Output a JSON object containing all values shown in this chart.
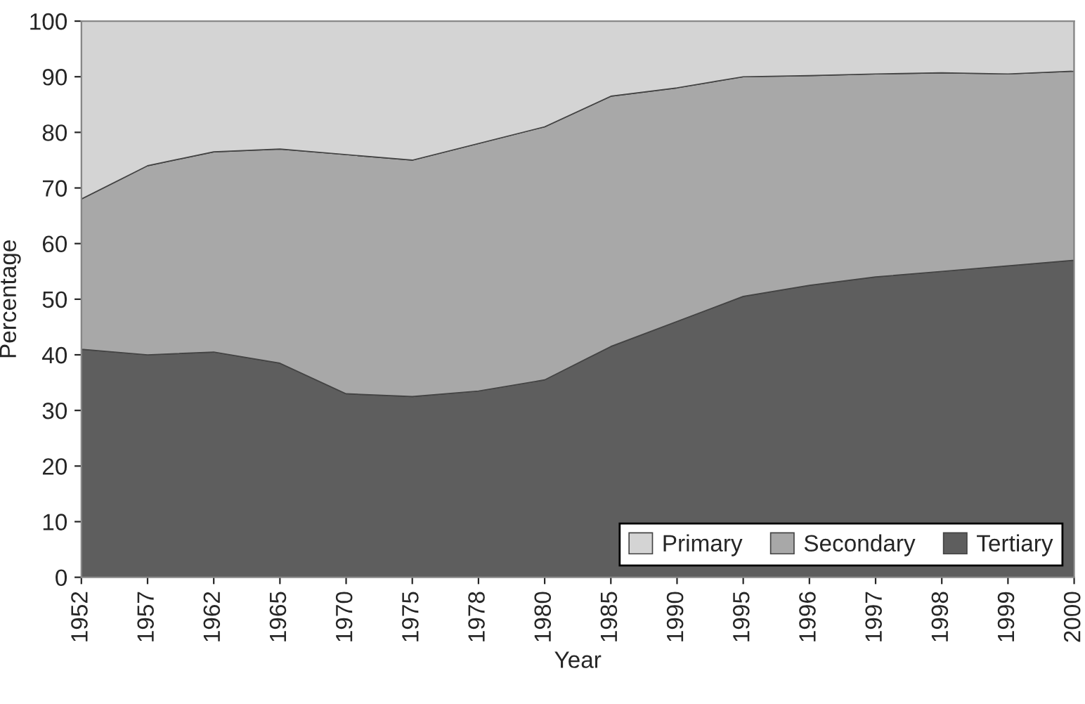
{
  "chart_data": {
    "type": "area",
    "stacked": true,
    "xlabel": "Year",
    "ylabel": "Percentage",
    "categories": [
      "1952",
      "1957",
      "1962",
      "1965",
      "1970",
      "1975",
      "1978",
      "1980",
      "1985",
      "1990",
      "1995",
      "1996",
      "1997",
      "1998",
      "1999",
      "2000"
    ],
    "series": [
      {
        "name": "Tertiary",
        "color": "#5e5e5e",
        "values": [
          41,
          40,
          40.5,
          38.5,
          33,
          32.5,
          33.5,
          35.5,
          41.5,
          46,
          50.5,
          52.5,
          54,
          55,
          56,
          57
        ]
      },
      {
        "name": "Secondary",
        "color": "#a8a8a8",
        "values": [
          27,
          34,
          36,
          38.5,
          43,
          42.5,
          44.5,
          45.5,
          45,
          42,
          39.5,
          37.7,
          36.5,
          35.7,
          34.5,
          34
        ]
      },
      {
        "name": "Primary",
        "color": "#d4d4d4",
        "values": [
          32,
          26,
          23.5,
          23,
          24,
          25,
          22,
          19,
          13.5,
          12,
          10,
          9.8,
          9.5,
          9.3,
          9.5,
          9
        ]
      }
    ],
    "ylim": [
      0,
      100
    ],
    "yticks": [
      0,
      10,
      20,
      30,
      40,
      50,
      60,
      70,
      80,
      90,
      100
    ],
    "legend": "bottom right"
  }
}
